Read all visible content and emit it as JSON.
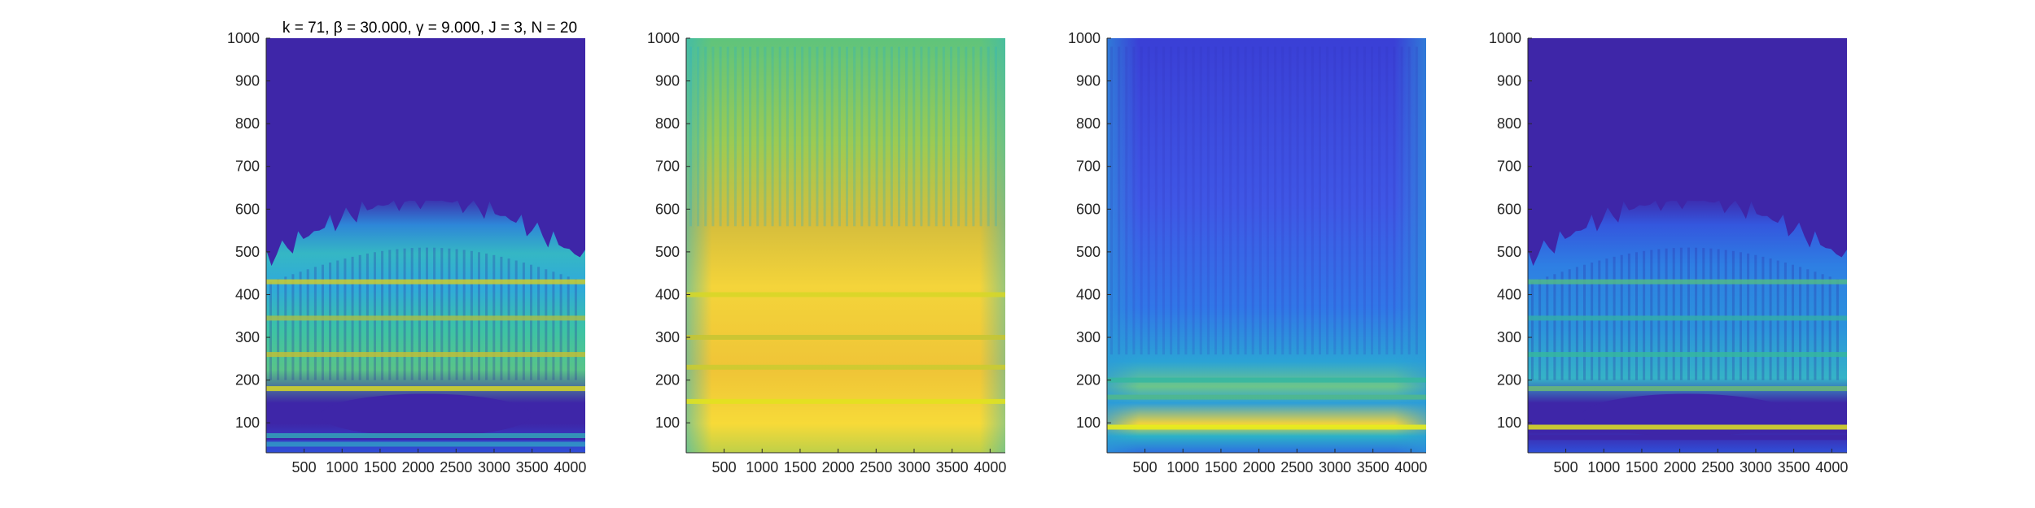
{
  "figure": {
    "title_text": "k = 71, β = 30.000, γ = 9.000, J = 3, N = 20"
  },
  "chart_data": [
    {
      "type": "heatmap",
      "title": "k = 71, β = 30.000, γ = 9.000, J = 3, N = 20",
      "xlabel": "",
      "ylabel": "",
      "xlim": [
        1,
        4200
      ],
      "ylim": [
        30,
        1000
      ],
      "xticks": [
        500,
        1000,
        1500,
        2000,
        2500,
        3000,
        3500,
        4000
      ],
      "yticks": [
        100,
        200,
        300,
        400,
        500,
        600,
        700,
        800,
        900,
        1000
      ],
      "colormap": "parula",
      "background": "#3E26A8",
      "bands": [
        {
          "y": 50,
          "level": 0.35
        },
        {
          "y": 70,
          "level": 0.4
        },
        {
          "y": 180,
          "level": 0.85
        },
        {
          "y": 260,
          "level": 0.75
        },
        {
          "y": 345,
          "level": 0.7
        },
        {
          "y": 430,
          "level": 0.8
        }
      ],
      "activity_top": 620
    },
    {
      "type": "heatmap",
      "title": "",
      "xlabel": "",
      "ylabel": "",
      "xlim": [
        1,
        4200
      ],
      "ylim": [
        30,
        1000
      ],
      "xticks": [
        500,
        1000,
        1500,
        2000,
        2500,
        3000,
        3500,
        4000
      ],
      "yticks": [
        100,
        200,
        300,
        400,
        500,
        600,
        700,
        800,
        900,
        1000
      ],
      "colormap": "parula",
      "bands": [
        {
          "y": 150,
          "level": 0.9
        },
        {
          "y": 230,
          "level": 0.8
        },
        {
          "y": 300,
          "level": 0.78
        },
        {
          "y": 400,
          "level": 0.85
        }
      ],
      "activity_top": 1000
    },
    {
      "type": "heatmap",
      "title": "",
      "xlabel": "",
      "ylabel": "",
      "xlim": [
        1,
        4200
      ],
      "ylim": [
        30,
        1000
      ],
      "xticks": [
        500,
        1000,
        1500,
        2000,
        2500,
        3000,
        3500,
        4000
      ],
      "yticks": [
        100,
        200,
        300,
        400,
        500,
        600,
        700,
        800,
        900,
        1000
      ],
      "colormap": "parula",
      "bands": [
        {
          "y": 90,
          "level": 0.95
        },
        {
          "y": 160,
          "level": 0.55
        },
        {
          "y": 200,
          "level": 0.5
        }
      ],
      "activity_top": 1000
    },
    {
      "type": "heatmap",
      "title": "",
      "xlabel": "",
      "ylabel": "",
      "xlim": [
        1,
        4200
      ],
      "ylim": [
        30,
        1000
      ],
      "xticks": [
        500,
        1000,
        1500,
        2000,
        2500,
        3000,
        3500,
        4000
      ],
      "yticks": [
        100,
        200,
        300,
        400,
        500,
        600,
        700,
        800,
        900,
        1000
      ],
      "colormap": "parula",
      "background": "#3E26A8",
      "bands": [
        {
          "y": 90,
          "level": 0.9
        },
        {
          "y": 180,
          "level": 0.6
        },
        {
          "y": 260,
          "level": 0.5
        },
        {
          "y": 345,
          "level": 0.45
        },
        {
          "y": 430,
          "level": 0.55
        }
      ],
      "activity_top": 620
    }
  ]
}
